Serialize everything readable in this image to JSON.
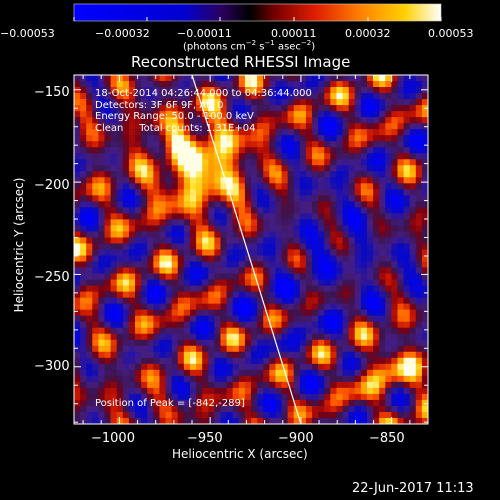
{
  "chart_data": {
    "type": "heatmap",
    "title": "Reconstructed RHESSI Image",
    "xlabel": "Heliocentric X (arcsec)",
    "ylabel": "Heliocentric Y (arcsec)",
    "xlim": [
      -1025,
      -830
    ],
    "ylim": [
      -331,
      -142
    ],
    "xticks": [
      -1000,
      -950,
      -900,
      -850
    ],
    "yticks": [
      -150,
      -200,
      -250,
      -300
    ],
    "xtick_labels": [
      "−1000",
      "−950",
      "−900",
      "−850"
    ],
    "ytick_labels": [
      "−150",
      "−200",
      "−250",
      "−300"
    ],
    "colorbar": {
      "ticks": [
        "−0.00053",
        "−0.00032",
        "−0.00011",
        "0.00011",
        "0.00032",
        "0.00053"
      ],
      "unit_prefix": "(photons cm",
      "unit_exp1": "−2",
      "unit_mid1": " s",
      "unit_exp2": "−1",
      "unit_mid2": " asec",
      "unit_exp3": "−2",
      "unit_suffix": ")"
    },
    "annotations": {
      "time_range": "18-Oct-2014 04:26:44.000 to 04:36:44.000",
      "detectors": "Detectors: 3F 6F 9F, Att 0",
      "energy": "Energy Range: 50.0 - 100.0 keV",
      "clean": "Clean     Total counts: 1.31E+04",
      "peak": "Position of Peak = [-842,-289]"
    },
    "limb_line": {
      "x": [
        -960,
        -938,
        -916,
        -900
      ],
      "y": [
        -142,
        -210,
        -280,
        -331
      ]
    },
    "peak": {
      "x": -842,
      "y": -289
    },
    "date_stamp": "22-Jun-2017 11:13"
  }
}
